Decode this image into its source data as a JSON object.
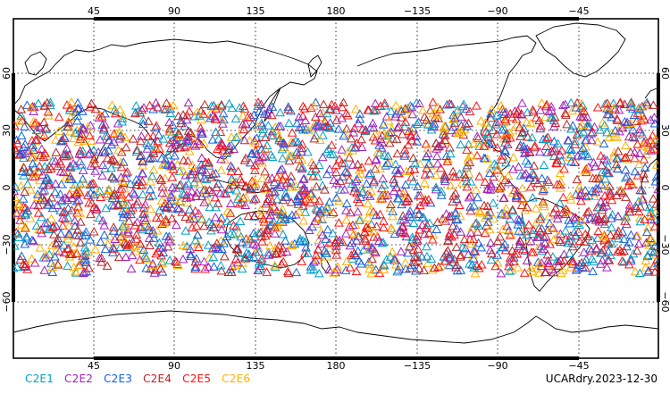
{
  "map": {
    "lon_ticks": [
      "45",
      "90",
      "135",
      "180",
      "−135",
      "−90",
      "−45"
    ],
    "lat_ticks": [
      "60",
      "30",
      "0",
      "−30",
      "−60"
    ],
    "markers": {
      "shape": "triangle-outline",
      "lat_range": [
        -45,
        45
      ]
    }
  },
  "legend": {
    "items": [
      {
        "label": "C2E1",
        "color": "#00a0c8"
      },
      {
        "label": "C2E2",
        "color": "#a020c0"
      },
      {
        "label": "C2E3",
        "color": "#1060e0"
      },
      {
        "label": "C2E4",
        "color": "#c02020"
      },
      {
        "label": "C2E5",
        "color": "#ff1010"
      },
      {
        "label": "C2E6",
        "color": "#ffb000"
      }
    ]
  },
  "footer": {
    "label": "UCARdry.2023-12-30"
  },
  "colors": {
    "frame": "#000000",
    "grid": "#000000",
    "coast": "#000000"
  }
}
